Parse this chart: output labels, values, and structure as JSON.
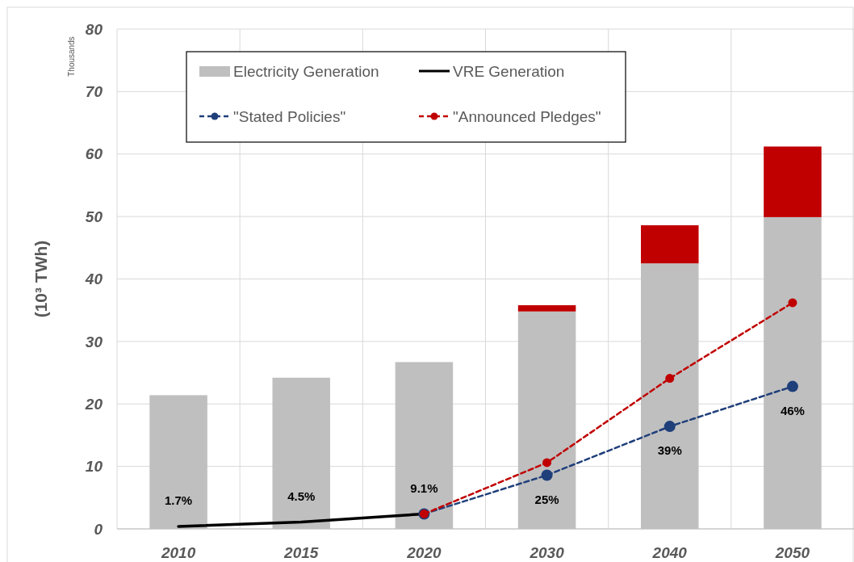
{
  "chart_data": {
    "type": "bar",
    "stacked": true,
    "ylabel": "(10³ TWh)",
    "categories": [
      "2010",
      "2015",
      "2020",
      "2030",
      "2040",
      "2050"
    ],
    "series": [
      {
        "name": "Electricity Generation",
        "color": "#bfbfbf",
        "values": [
          21.4,
          24.2,
          26.7,
          34.8,
          42.5,
          49.9
        ]
      },
      {
        "color": "#c00000",
        "values": [
          null,
          null,
          null,
          1.0,
          6.1,
          11.3
        ]
      },
      {
        "name": "VRE Generation",
        "type": "line",
        "color": "#000000",
        "line_style": "solid",
        "marker": "none",
        "values": [
          0.4,
          1.1,
          2.4,
          null,
          null,
          null
        ]
      },
      {
        "name": "\"Stated Policies\"",
        "type": "line",
        "color": "#1f3f7a",
        "line_style": "dashed",
        "marker": "circle",
        "values": [
          null,
          null,
          2.4,
          8.6,
          16.4,
          22.8
        ]
      },
      {
        "name": "\"Announced Pledges\"",
        "type": "line",
        "color": "#c00000",
        "line_style": "dashed",
        "marker": "circle",
        "values": [
          null,
          null,
          2.4,
          10.6,
          24.1,
          36.2
        ]
      }
    ],
    "ylim": [
      0,
      80
    ],
    "yticks": [
      0,
      10,
      20,
      30,
      40,
      50,
      60,
      70,
      80
    ],
    "grid": true,
    "legend": "top",
    "annotations": [
      "Thousands",
      {
        "text": "1.7%",
        "x": "2010",
        "y": 0.4
      },
      {
        "text": "4.5%",
        "x": "2015",
        "y": 1.1
      },
      {
        "text": "9.1%",
        "x": "2020",
        "y": 2.4
      },
      {
        "text": "25%",
        "x": "2030",
        "y": 8.6
      },
      {
        "text": "39%",
        "x": "2040",
        "y": 16.4
      },
      {
        "text": "46%",
        "x": "2050",
        "y": 22.8
      }
    ]
  }
}
